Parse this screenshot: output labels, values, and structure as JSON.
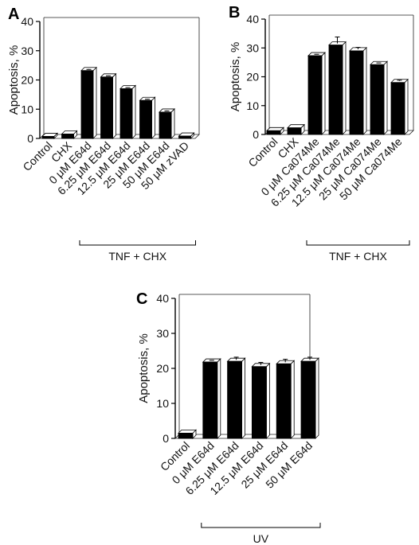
{
  "chart_data": [
    {
      "panel": "A",
      "type": "bar",
      "ylabel": "Apoptosis, %",
      "ylim": [
        0,
        40
      ],
      "yticks": [
        0,
        10,
        20,
        30,
        40
      ],
      "categories": [
        "Control",
        "CHX",
        "0 μM E64d",
        "6.25 μM E64d",
        "12.5 μM E64d",
        "25 μM E64d",
        "50 μM E64d",
        "50 μM zVAD"
      ],
      "values": [
        0.7,
        1.5,
        23.2,
        21.0,
        17.0,
        13.0,
        9.0,
        0.8
      ],
      "errors": [
        0,
        0,
        0.4,
        0.4,
        0.4,
        0.4,
        0.4,
        0
      ],
      "bracket": {
        "label": "TNF + CHX",
        "from": 2,
        "to": 7
      },
      "bar_color": "#000000"
    },
    {
      "panel": "B",
      "type": "bar",
      "ylabel": "Apoptosis, %",
      "ylim": [
        0,
        40
      ],
      "yticks": [
        0,
        10,
        20,
        30,
        40
      ],
      "categories": [
        "Control",
        "CHX",
        "0 μM Ca074Me",
        "6.25 μM Ca074Me",
        "12.5 μM Ca074Me",
        "25 μM Ca074Me",
        "50 μM Ca074Me"
      ],
      "values": [
        1.3,
        2.3,
        27.3,
        31.0,
        29.0,
        24.2,
        18.0
      ],
      "errors": [
        0,
        0,
        0.5,
        2.8,
        1.2,
        0.6,
        0.8
      ],
      "bracket": {
        "label": "TNF + CHX",
        "from": 2,
        "to": 6
      },
      "bar_color": "#000000"
    },
    {
      "panel": "C",
      "type": "bar",
      "ylabel": "Apoptosis, %",
      "ylim": [
        0,
        40
      ],
      "yticks": [
        0,
        10,
        20,
        30,
        40
      ],
      "categories": [
        "Control",
        "0 μM E64d",
        "6.25 μM E64d",
        "12.5 μM E64d",
        "25 μM E64d",
        "50 μM E64d"
      ],
      "values": [
        1.5,
        21.8,
        22.0,
        20.5,
        21.3,
        22.0
      ],
      "errors": [
        0,
        0.5,
        1.2,
        1.2,
        1.3,
        1.2
      ],
      "bracket": {
        "label": "UV",
        "from": 1,
        "to": 5
      },
      "bar_color": "#000000"
    }
  ]
}
